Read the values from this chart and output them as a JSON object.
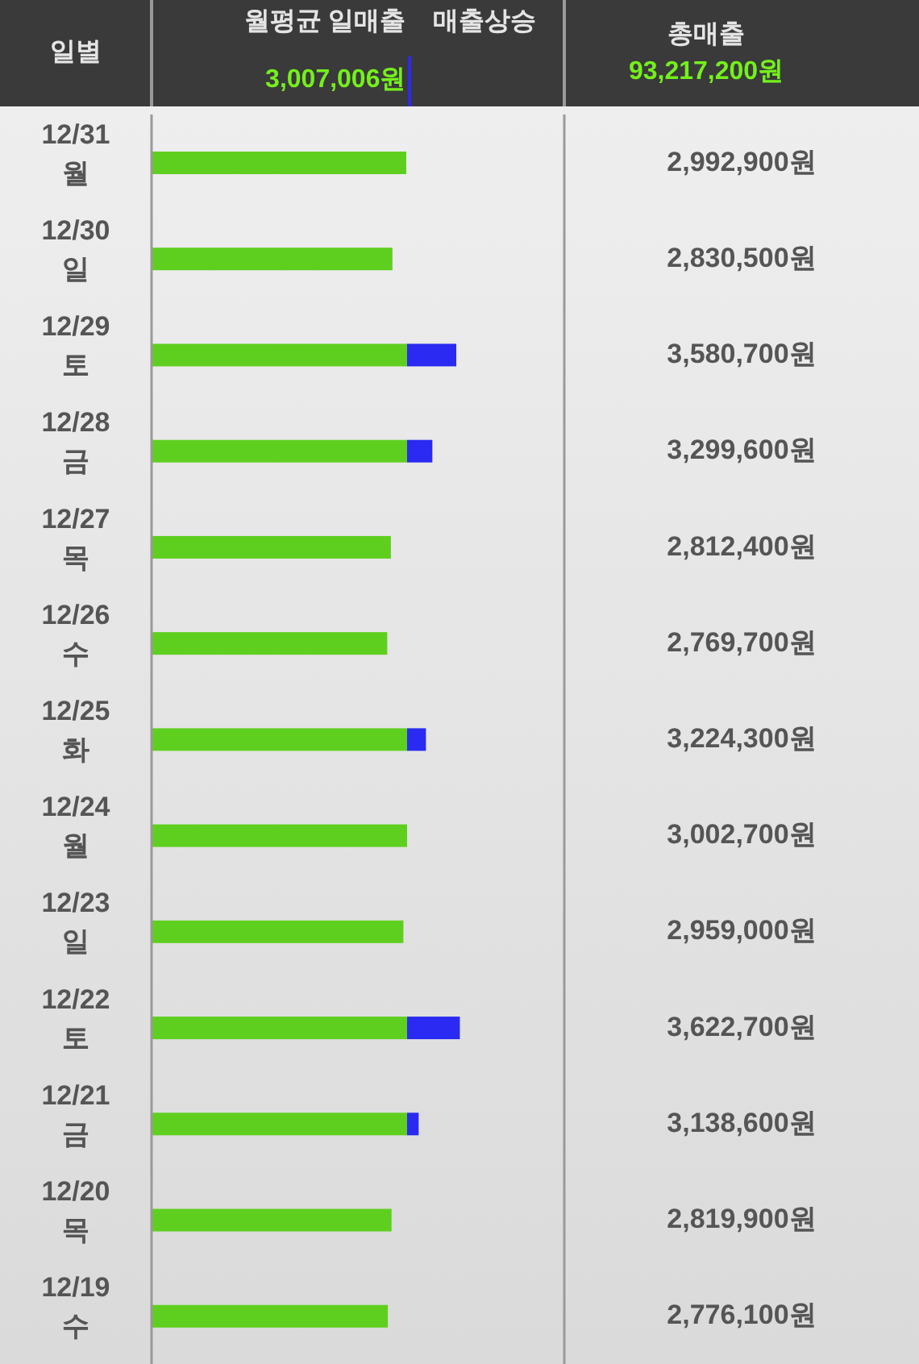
{
  "chart_data": {
    "type": "bar",
    "orientation": "horizontal",
    "ylabel": "일별",
    "categories": [
      "12/31\n월",
      "12/30\n일",
      "12/29\n토",
      "12/28\n금",
      "12/27\n목",
      "12/26\n수",
      "12/25\n화",
      "12/24\n월",
      "12/23\n일",
      "12/22\n토",
      "12/21\n금",
      "12/20\n목",
      "12/19\n수"
    ],
    "values": [
      2992900,
      2830500,
      3580700,
      3299600,
      2812400,
      2769700,
      3224300,
      3002700,
      2959000,
      3622700,
      3138600,
      2819900,
      2776100
    ],
    "color": "#5fcf1f",
    "value_labels": [
      "2,992,900원",
      "2,830,500원",
      "3,580,700원",
      "3,299,600원",
      "2,812,400원",
      "2,769,700원",
      "3,224,300원",
      "3,002,700원",
      "2,959,000원",
      "3,622,700원",
      "3,138,600원",
      "2,819,900원",
      "2,776,100원"
    ],
    "ref_lines": [
      {
        "axis": "x",
        "value": 3007006,
        "label": "월평균 일매출\n3,007,006원",
        "color": "#2a2af2"
      }
    ],
    "annotations": [
      "매출상승",
      "총매출",
      "93,217,200원"
    ],
    "xlim": [
      0,
      4850000
    ],
    "tick_labels": "y",
    "grid": false
  }
}
